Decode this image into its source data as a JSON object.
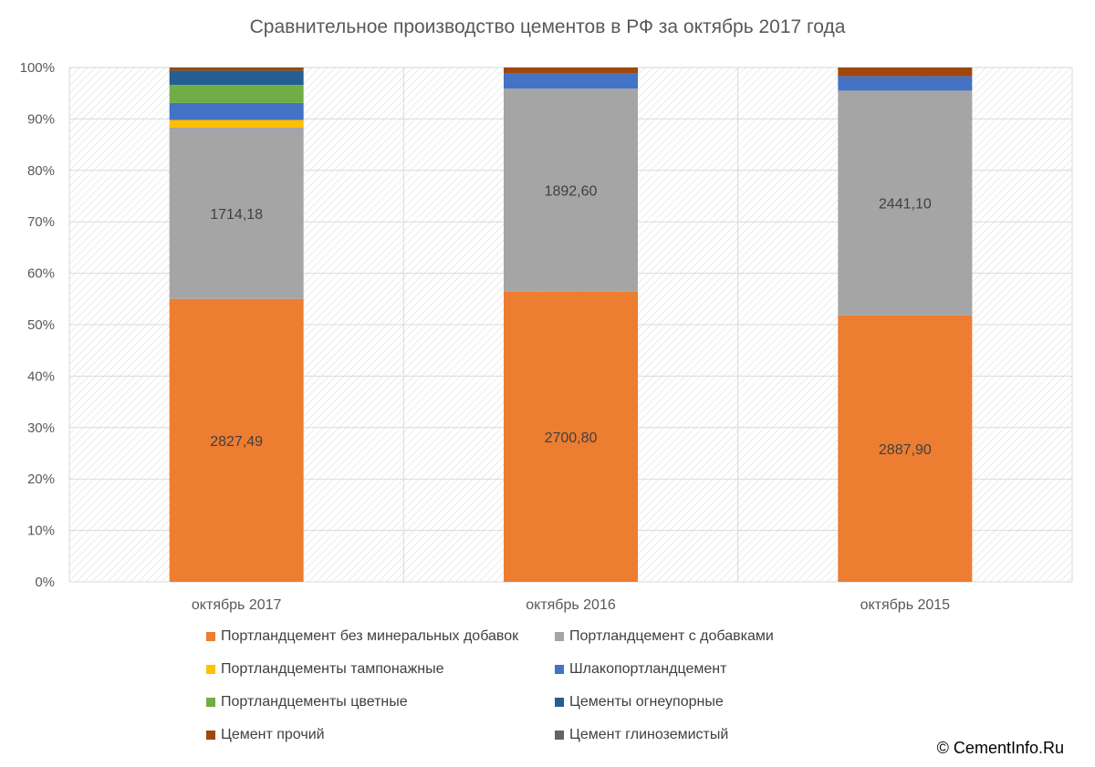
{
  "chart_data": {
    "type": "bar",
    "stacked": true,
    "percent_stacked": true,
    "title": "Сравнительное производство цементов в РФ за октябрь 2017 года",
    "categories": [
      "октябрь 2017",
      "октябрь 2016",
      "октябрь 2015"
    ],
    "ylim": [
      0,
      100
    ],
    "yticks": [
      "0%",
      "10%",
      "20%",
      "30%",
      "40%",
      "50%",
      "60%",
      "70%",
      "80%",
      "90%",
      "100%"
    ],
    "grid": true,
    "legend_position": "bottom",
    "series": [
      {
        "name": "Портландцемент без минеральных добавок",
        "color": "#ED7D31",
        "percent": [
          55.0,
          56.4,
          51.8
        ],
        "labels": [
          "2827,49",
          "2700,80",
          "2887,90"
        ]
      },
      {
        "name": "Портландцемент с добавками",
        "color": "#A5A5A5",
        "percent": [
          33.3,
          39.5,
          43.7
        ],
        "labels": [
          "1714,18",
          "1892,60",
          "2441,10"
        ]
      },
      {
        "name": "Портландцементы тампонажные",
        "color": "#FFC000",
        "percent": [
          1.5,
          0.0,
          0.0
        ],
        "labels": [
          "",
          "",
          ""
        ]
      },
      {
        "name": "Шлакопортландцемент",
        "color": "#4472C4",
        "percent": [
          3.3,
          2.9,
          2.8
        ],
        "labels": [
          "",
          "",
          ""
        ]
      },
      {
        "name": "Портландцементы цветные",
        "color": "#70AD47",
        "percent": [
          3.5,
          0.0,
          0.0
        ],
        "labels": [
          "",
          "",
          ""
        ]
      },
      {
        "name": "Цементы огнеупорные",
        "color": "#255E91",
        "percent": [
          2.8,
          0.0,
          0.0
        ],
        "labels": [
          "",
          "",
          ""
        ]
      },
      {
        "name": "Цемент прочий",
        "color": "#9E480E",
        "percent": [
          0.6,
          1.2,
          1.7
        ],
        "labels": [
          "",
          "",
          ""
        ]
      },
      {
        "name": "Цемент глиноземистый",
        "color": "#636363",
        "percent": [
          0.0,
          0.0,
          0.0
        ],
        "labels": [
          "",
          "",
          ""
        ]
      }
    ]
  },
  "footer": {
    "copyright": "© CementInfo.Ru"
  }
}
